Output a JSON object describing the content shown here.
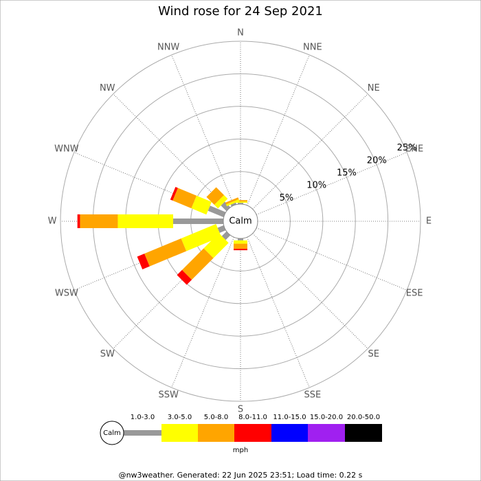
{
  "chart_data": {
    "type": "windrose",
    "title": "Wind rose for 24 Sep 2021",
    "center_label": "Calm",
    "directions": [
      "N",
      "NNE",
      "NE",
      "ENE",
      "E",
      "ESE",
      "SE",
      "SSE",
      "S",
      "SSW",
      "SW",
      "WSW",
      "W",
      "WNW",
      "NW",
      "NNW"
    ],
    "series": [
      {
        "name": "1.0-3.0",
        "color": "#999999",
        "values": [
          0.2,
          0,
          0,
          0,
          0,
          0,
          0,
          0,
          0.3,
          0,
          1.0,
          1.0,
          7.7,
          2.6,
          1.2,
          0.3
        ]
      },
      {
        "name": "3.0-5.0",
        "color": "#ffff00",
        "values": [
          0.2,
          0,
          0,
          0,
          0,
          0,
          0,
          0,
          0.5,
          0,
          3.3,
          5.8,
          8.5,
          2.5,
          0.8,
          0.3
        ]
      },
      {
        "name": "5.0-8.0",
        "color": "#ffa500",
        "values": [
          0.2,
          0,
          0,
          0,
          0,
          0,
          0,
          0,
          0.8,
          0,
          4.7,
          6.1,
          5.8,
          3.1,
          1.7,
          0.3
        ]
      },
      {
        "name": "8.0-11.0",
        "color": "#ff0000",
        "values": [
          0,
          0,
          0,
          0,
          0,
          0,
          0,
          0,
          0.2,
          0,
          1.1,
          1.2,
          0.4,
          0.4,
          0,
          0
        ]
      },
      {
        "name": "11.0-15.0",
        "color": "#0000ff",
        "values": [
          0,
          0,
          0,
          0,
          0,
          0,
          0,
          0,
          0,
          0,
          0,
          0,
          0,
          0,
          0,
          0
        ]
      },
      {
        "name": "15.0-20.0",
        "color": "#a020f0",
        "values": [
          0,
          0,
          0,
          0,
          0,
          0,
          0,
          0,
          0,
          0,
          0,
          0,
          0,
          0,
          0,
          0
        ]
      },
      {
        "name": "20.0-50.0",
        "color": "#000000",
        "values": [
          0,
          0,
          0,
          0,
          0,
          0,
          0,
          0,
          0,
          0,
          0,
          0,
          0,
          0,
          0,
          0
        ]
      }
    ],
    "rlim": [
      0,
      25
    ],
    "rticks": [
      {
        "value": 5,
        "label": "5%"
      },
      {
        "value": 10,
        "label": "10%"
      },
      {
        "value": 15,
        "label": "15%"
      },
      {
        "value": 20,
        "label": "20%"
      },
      {
        "value": 25,
        "label": "25%"
      }
    ],
    "unit": "mph",
    "footer": "@nw3weather. Generated: 22 Jun 2025 23:51; Load time: 0.22 s"
  }
}
